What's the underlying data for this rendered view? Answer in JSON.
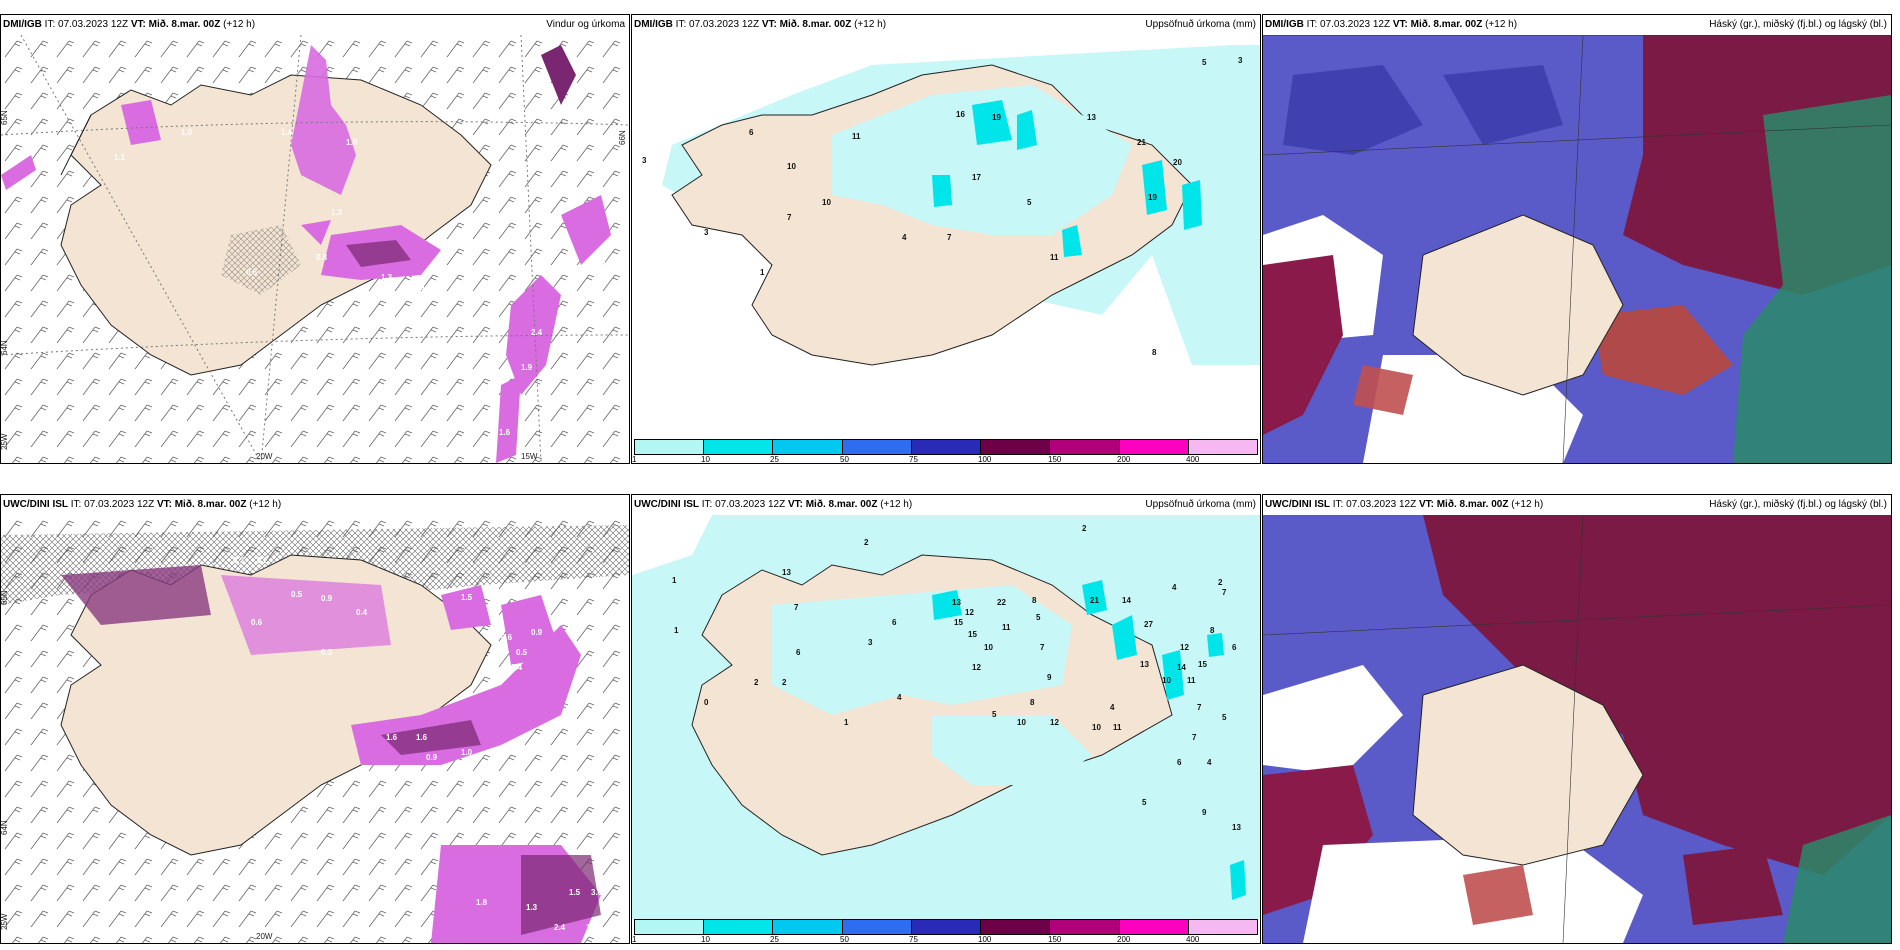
{
  "row1": {
    "p1": {
      "model": "DMI/IGB",
      "it": " IT: 07.03.2023 12Z ",
      "vt_label": "VT:",
      "vt": " Mið. 8.mar. 00Z",
      "step": " (+12 h)",
      "title": "Vindur og úrkoma",
      "axis_labels": [
        "65N",
        "64N",
        "25W",
        "20W",
        "15W",
        "66N"
      ],
      "values": [
        "1.1",
        "1.0",
        "0.5",
        "1.3",
        "1.0",
        "0.8",
        "1.3",
        "1.6",
        "1.3",
        "2.4",
        "1.9",
        "1.6",
        "1.4",
        "0.9"
      ]
    },
    "p2": {
      "model": "DMI/IGB",
      "it": " IT: 07.03.2023 12Z ",
      "vt_label": "VT:",
      "vt": " Mið. 8.mar. 00Z",
      "step": " (+12 h)",
      "title": "Uppsöfnuð úrkoma (mm)",
      "values": [
        "3",
        "6",
        "10",
        "11",
        "16",
        "19",
        "13",
        "21",
        "20",
        "17",
        "19",
        "5",
        "7",
        "4",
        "7",
        "11",
        "1",
        "3",
        "8",
        "5",
        "3",
        "10"
      ]
    },
    "p3": {
      "model": "DMI/IGB",
      "it": " IT: 07.03.2023 12Z ",
      "vt_label": "VT:",
      "vt": " Mið. 8.mar. 00Z",
      "step": " (+12 h)",
      "title": "Háský (gr.), miðský (fj.bl.) og lágský (bl.)"
    }
  },
  "row2": {
    "p1": {
      "model": "UWC/DINI ISL",
      "it": " IT: 07.03.2023 12Z ",
      "vt_label": "VT:",
      "vt": " Mið. 8.mar. 00Z",
      "step": " (+12 h)",
      "title": "",
      "axis_labels": [
        "65N",
        "64N",
        "25W",
        "20W"
      ],
      "values": [
        "0.3",
        "0.2",
        "0.5",
        "0.9",
        "0.4",
        "0.6",
        "1.5",
        "0.6",
        "0.9",
        "0.3",
        "1.6",
        "1.6",
        "0.9",
        "1.0",
        "1.5",
        "3.0",
        "1.3",
        "2.4",
        "1.8",
        "1.7",
        "0.5",
        "0.4"
      ]
    },
    "p2": {
      "model": "UWC/DINI ISL",
      "it": " IT: 07.03.2023 12Z ",
      "vt_label": "VT:",
      "vt": " Mið. 8.mar. 00Z",
      "step": " (+12 h)",
      "title": "Uppsöfnuð úrkoma (mm)",
      "values": [
        "2",
        "2",
        "1",
        "13",
        "7",
        "6",
        "13",
        "12",
        "22",
        "8",
        "21",
        "14",
        "4",
        "2",
        "1",
        "15",
        "15",
        "11",
        "5",
        "27",
        "8",
        "6",
        "10",
        "7",
        "12",
        "13",
        "14",
        "15",
        "10",
        "11",
        "12",
        "9",
        "8",
        "5",
        "10",
        "12",
        "10",
        "11",
        "7",
        "5",
        "6",
        "4",
        "5",
        "9",
        "13",
        "7",
        "4",
        "4",
        "1",
        "0",
        "2",
        "2",
        "6",
        "3",
        "7"
      ]
    },
    "p3": {
      "model": "UWC/DINI ISL",
      "it": " IT: 07.03.2023 12Z ",
      "vt_label": "VT:",
      "vt": " Mið. 8.mar. 00Z",
      "step": " (+12 h)",
      "title": "Háský (gr.), miðský (fj.bl.) og lágský (bl.)"
    }
  },
  "legend": {
    "ticks": [
      "1",
      "10",
      "25",
      "50",
      "75",
      "100",
      "150",
      "200",
      "400"
    ],
    "colors": [
      "#b3f7f5",
      "#00e5ea",
      "#00c8f0",
      "#2e6cf0",
      "#2a2ab8",
      "#6d0047",
      "#b0007a",
      "#ff00c0",
      "#f5b8f0"
    ]
  },
  "colors": {
    "land": "#f3e4d3",
    "precip_light": "#c8f7f7",
    "precip_mid": "#00e5ea",
    "wind_precip": "#d86ce0",
    "wind_precip_dark": "#7a2670",
    "cloud_high": "#2a8a6a",
    "cloud_mid": "#7a1a45",
    "cloud_low": "#5050c8"
  }
}
